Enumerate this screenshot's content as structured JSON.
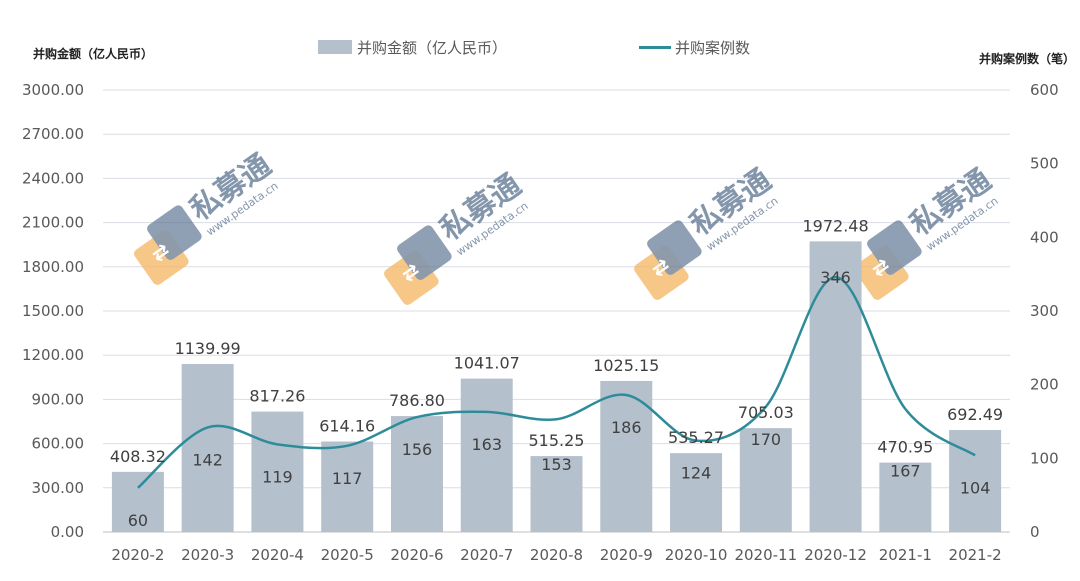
{
  "chart_data": {
    "type": "bar+line",
    "categories": [
      "2020-2",
      "2020-3",
      "2020-4",
      "2020-5",
      "2020-6",
      "2020-7",
      "2020-8",
      "2020-9",
      "2020-10",
      "2020-11",
      "2020-12",
      "2021-1",
      "2021-2"
    ],
    "series": [
      {
        "name": "并购金额（亿人民币）",
        "type": "bar",
        "axis": "left",
        "color": "#b5c0cd",
        "values": [
          408.32,
          1139.99,
          817.26,
          614.16,
          786.8,
          1041.07,
          515.25,
          1025.15,
          535.27,
          705.03,
          1972.48,
          470.95,
          692.49
        ],
        "labels": [
          "408.32",
          "1139.99",
          "817.26",
          "614.16",
          "786.80",
          "1041.07",
          "515.25",
          "1025.15",
          "535.27",
          "705.03",
          "1972.48",
          "470.95",
          "692.49"
        ]
      },
      {
        "name": "并购案例数",
        "type": "line",
        "axis": "right",
        "color": "#2e8c9a",
        "smooth": true,
        "values": [
          60,
          142,
          119,
          117,
          156,
          163,
          153,
          186,
          124,
          170,
          346,
          167,
          104
        ]
      }
    ],
    "ylabel_left": "并购金额（亿人民币）",
    "ylabel_right": "并购案例数（笔）",
    "ylim_left": [
      0,
      3000
    ],
    "ylim_right": [
      0,
      600
    ],
    "yticks_left": [
      "0.00",
      "300.00",
      "600.00",
      "900.00",
      "1200.00",
      "1500.00",
      "1800.00",
      "2100.00",
      "2400.00",
      "2700.00",
      "3000.00"
    ],
    "yticks_right": [
      "0",
      "100",
      "200",
      "300",
      "400",
      "500",
      "600"
    ],
    "grid": true,
    "legend": "top-center"
  },
  "watermark": {
    "brand": "私募通",
    "url": "www.pedata.cn"
  }
}
